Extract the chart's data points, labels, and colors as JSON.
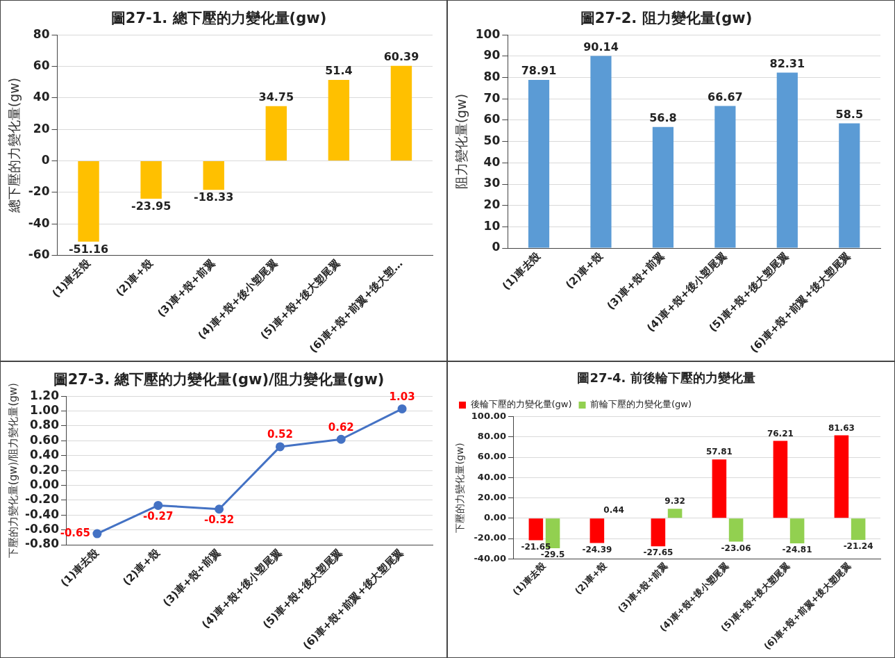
{
  "chart_data": [
    {
      "type": "bar",
      "title": "圖27-1. 總下壓的力變化量(gw)",
      "ylabel": "總下壓的力變化量(gw)",
      "categories": [
        "(1)車去殼",
        "(2)車+殼",
        "(3)車+殼+前翼",
        "(4)車+殼+後小塑尾翼",
        "(5)車+殼+後大塑尾翼",
        "(6)車+殼+前翼+後大塑…"
      ],
      "values": [
        -51.16,
        -23.95,
        -18.33,
        34.75,
        51.4,
        60.39
      ],
      "color": "#ffc000",
      "ylim": [
        -60,
        80
      ],
      "yticks": [
        -60,
        -40,
        -20,
        0,
        20,
        40,
        60,
        80
      ],
      "grid": "y",
      "data_labels": true
    },
    {
      "type": "bar",
      "title": "圖27-2. 阻力變化量(gw)",
      "ylabel": "阻力變化量(gw)",
      "categories": [
        "(1)車去殼",
        "(2)車+殼",
        "(3)車+殼+前翼",
        "(4)車+殼+後小塑尾翼",
        "(5)車+殼+後大塑尾翼",
        "(6)車+殼+前翼+後大塑尾翼"
      ],
      "values": [
        78.91,
        90.14,
        56.8,
        66.67,
        82.31,
        58.5
      ],
      "color": "#5b9bd5",
      "ylim": [
        0,
        100
      ],
      "yticks": [
        0,
        10,
        20,
        30,
        40,
        50,
        60,
        70,
        80,
        90,
        100
      ],
      "grid": "y",
      "data_labels": true
    },
    {
      "type": "line",
      "title": "圖27-3. 總下壓的力變化量(gw)/阻力變化量(gw)",
      "ylabel": "下壓的力變化量(gw)/阻力變化量(gw)",
      "categories": [
        "(1)車去殼",
        "(2)車+殼",
        "(3)車+殼+前翼",
        "(4)車+殼+後小塑尾翼",
        "(5)車+殼+後大塑尾翼",
        "(6)車+殼+前翼+後大塑尾翼"
      ],
      "values": [
        -0.65,
        -0.27,
        -0.32,
        0.52,
        0.62,
        1.03
      ],
      "color": "#4472c4",
      "marker": "circle",
      "ylim": [
        -0.8,
        1.2
      ],
      "yticks": [
        {
          "value": -0.8,
          "label": "-0.80"
        },
        {
          "value": -0.6,
          "label": "-0.60"
        },
        {
          "value": -0.4,
          "label": "-0.40"
        },
        {
          "value": -0.2,
          "label": "-0.20"
        },
        {
          "value": 0,
          "label": "0.00"
        },
        {
          "value": 0.2,
          "label": "0.20"
        },
        {
          "value": 0.4,
          "label": "0.40"
        },
        {
          "value": 0.6,
          "label": "0.60"
        },
        {
          "value": 0.8,
          "label": "0.80"
        },
        {
          "value": 1,
          "label": "1.00"
        },
        {
          "value": 1.2,
          "label": "1.20"
        }
      ],
      "grid": "y",
      "data_labels": true
    },
    {
      "type": "bar",
      "title": "圖27-4. 前後輪下壓的力變化量",
      "ylabel": "下壓的力變化量(gw)",
      "categories": [
        "(1)車去殼",
        "(2)車+殼",
        "(3)車+殼+前翼",
        "(4)車+殼+後小塑尾翼",
        "(5)車+殼+後大塑尾翼",
        "(6)車+殼+前翼+後大塑尾翼"
      ],
      "series": [
        {
          "name": "後輪下壓的力變化量(gw)",
          "color": "#ff0000",
          "values": [
            -21.65,
            -24.39,
            -27.65,
            57.81,
            76.21,
            81.63
          ]
        },
        {
          "name": "前輪下壓的力變化量(gw)",
          "color": "#92d050",
          "values": [
            -29.5,
            0.44,
            9.32,
            -23.06,
            -24.81,
            -21.24
          ]
        }
      ],
      "ylim": [
        -40,
        100
      ],
      "yticks": [
        {
          "value": -40,
          "label": "-40.00"
        },
        {
          "value": -20,
          "label": "-20.00"
        },
        {
          "value": 0,
          "label": "0.00"
        },
        {
          "value": 20,
          "label": "20.00"
        },
        {
          "value": 40,
          "label": "40.00"
        },
        {
          "value": 60,
          "label": "60.00"
        },
        {
          "value": 80,
          "label": "80.00"
        },
        {
          "value": 100,
          "label": "100.00"
        }
      ],
      "grid": "y",
      "legend": "top left",
      "data_labels": true
    }
  ]
}
